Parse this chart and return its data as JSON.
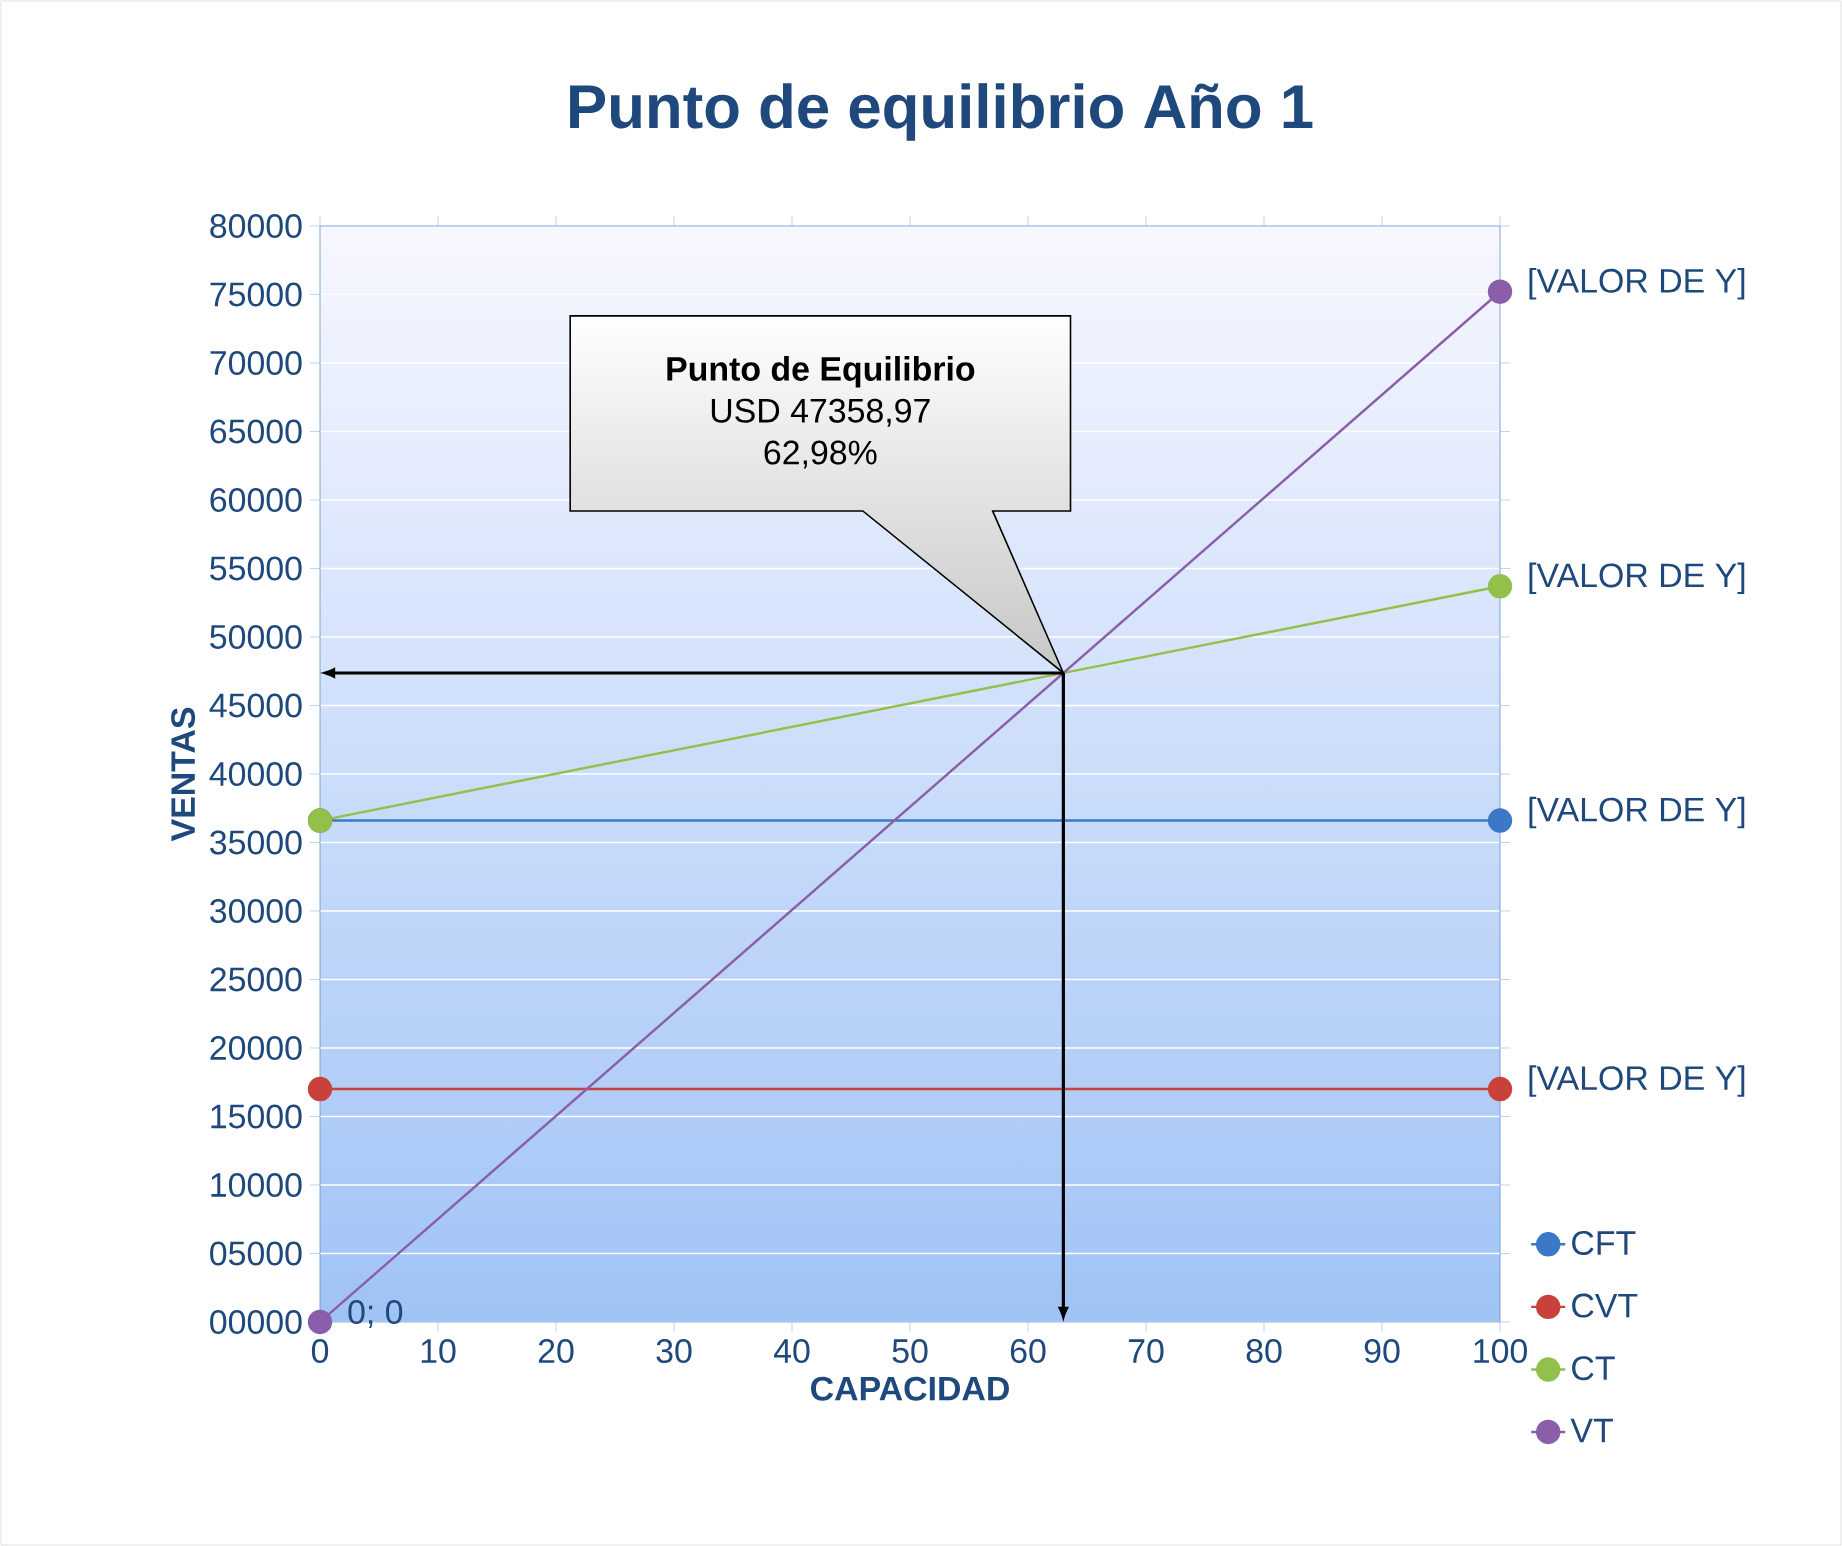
{
  "chart_data": {
    "type": "line",
    "title": "Punto de equilibrio Año 1",
    "xlabel": "CAPACIDAD",
    "ylabel": "VENTAS",
    "x": [
      0,
      100
    ],
    "series": [
      {
        "name": "CFT",
        "color": "#3c78c8",
        "values": [
          36600,
          36600
        ],
        "value_labels": [
          null,
          "[VALOR DE Y]"
        ]
      },
      {
        "name": "CVT",
        "color": "#c8413b",
        "values": [
          17000,
          17000
        ],
        "value_labels": [
          null,
          "[VALOR DE Y]"
        ]
      },
      {
        "name": "CT",
        "color": "#92c04a",
        "values": [
          36600,
          53700
        ],
        "value_labels": [
          null,
          "[VALOR DE Y]"
        ]
      },
      {
        "name": "VT",
        "color": "#8a5ea8",
        "values": [
          0,
          75200
        ],
        "value_labels": [
          "0; 0",
          "[VALOR DE Y]"
        ]
      }
    ],
    "xlim": [
      0,
      100
    ],
    "xticks": [
      0,
      10,
      20,
      30,
      40,
      50,
      60,
      70,
      80,
      90,
      100
    ],
    "ylim": [
      0,
      80000
    ],
    "yticks": [
      {
        "value": 0,
        "label": "00000"
      },
      {
        "value": 5000,
        "label": "05000"
      },
      10000,
      15000,
      20000,
      25000,
      30000,
      35000,
      40000,
      45000,
      50000,
      55000,
      60000,
      65000,
      70000,
      75000,
      80000
    ],
    "annotations": [
      "**Punto de Equilibrio**",
      "USD 47358,97",
      "62,98%"
    ],
    "grid": "y",
    "legend": "bottom right",
    "marker": "circle",
    "line_style": "solid"
  }
}
